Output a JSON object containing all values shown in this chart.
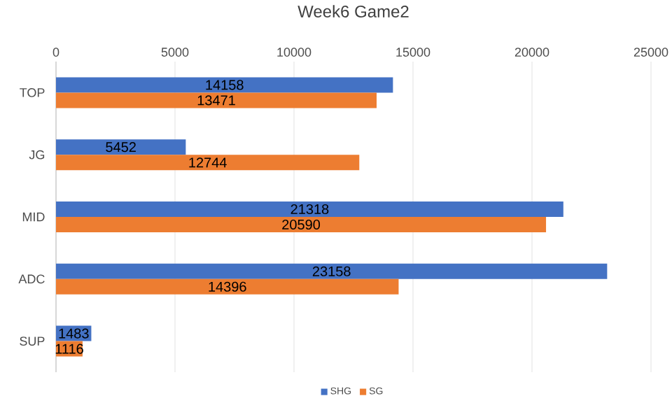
{
  "chart_data": {
    "type": "bar",
    "orientation": "horizontal",
    "title": "Week6 Game2",
    "categories": [
      "TOP",
      "JG",
      "MID",
      "ADC",
      "SUP"
    ],
    "series": [
      {
        "name": "SHG",
        "color": "#4472c4",
        "values": [
          14158,
          5452,
          21318,
          23158,
          1483
        ]
      },
      {
        "name": "SG",
        "color": "#ed7d31",
        "values": [
          13471,
          12744,
          20590,
          14396,
          1116
        ]
      }
    ],
    "xlim": [
      0,
      25000
    ],
    "xticks": [
      0,
      5000,
      10000,
      15000,
      20000,
      25000
    ],
    "grid": "x",
    "data_labels": true,
    "legend": "bottom"
  }
}
